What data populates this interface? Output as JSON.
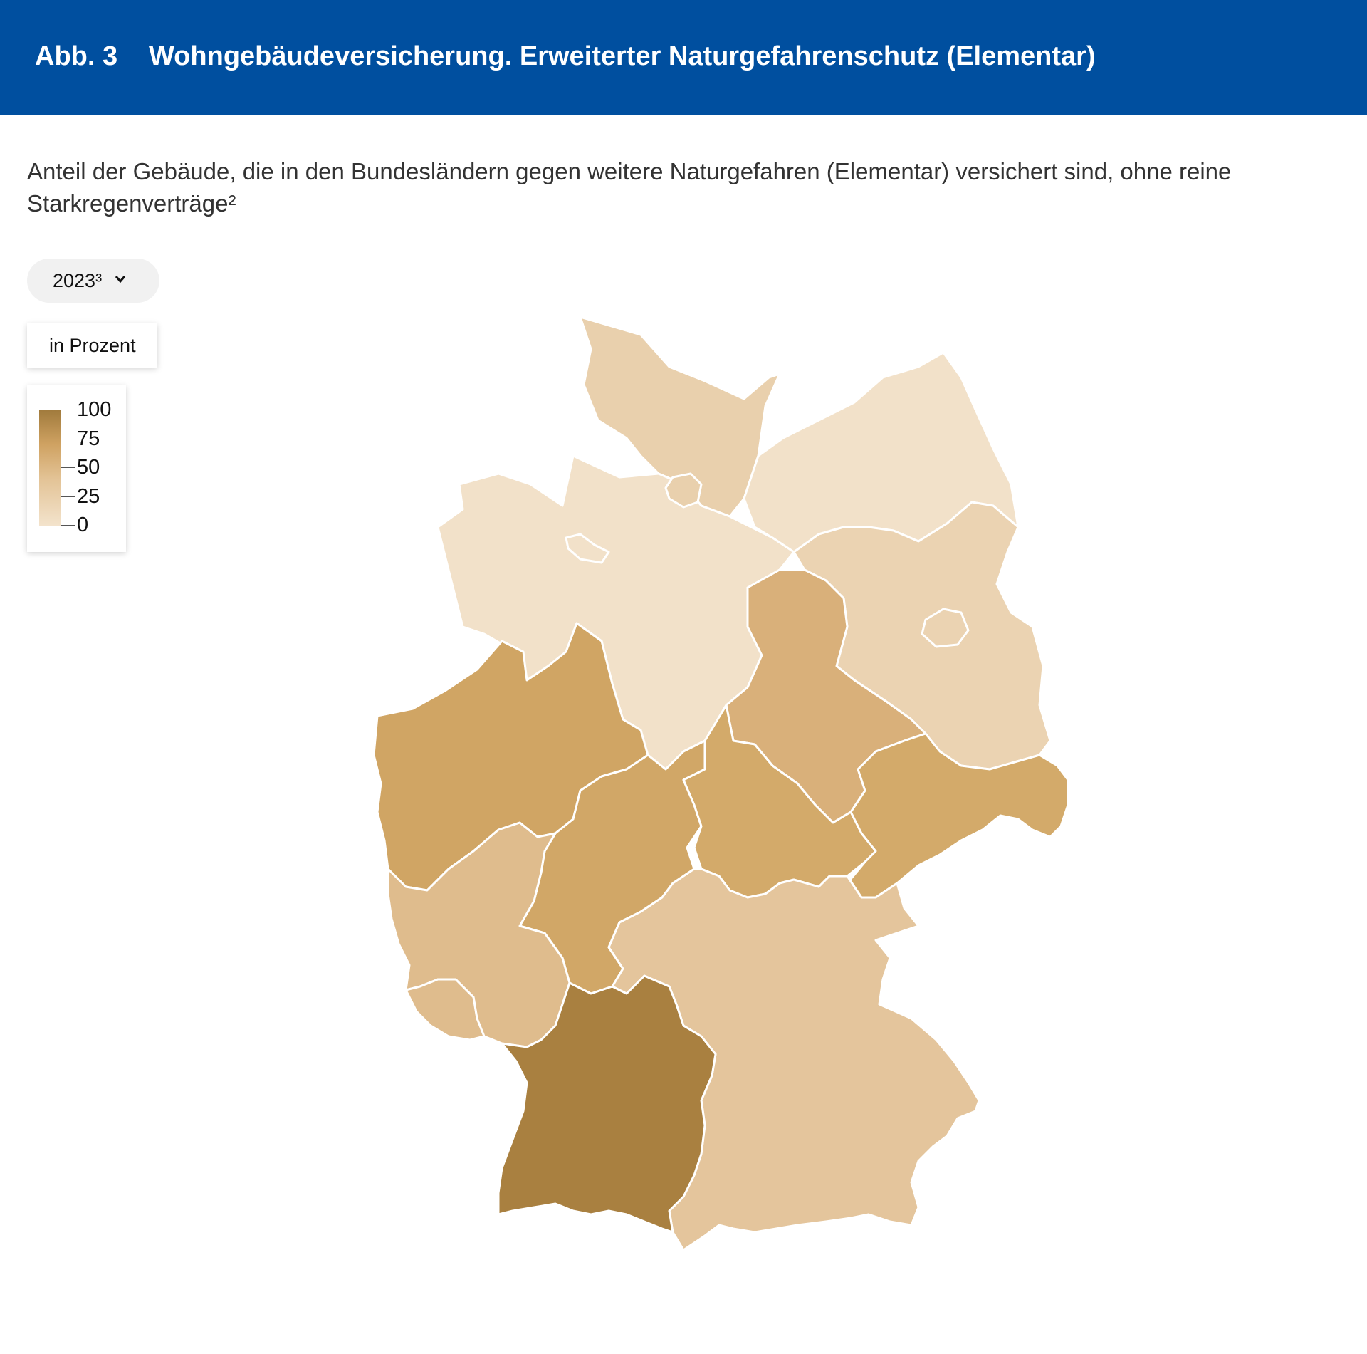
{
  "header": {
    "figure_number": "Abb. 3",
    "title": "Wohngebäudeversicherung. Erweiterter Naturgefahrenschutz (Elementar)"
  },
  "subtitle": "Anteil der Gebäude, die in den Bundesländern gegen weitere Naturgefahren (Elementar) versichert sind, ohne reine Starkregenverträge²",
  "year_select": {
    "value": "2023³"
  },
  "unit_label": "in Prozent",
  "legend": {
    "ticks": [
      "100",
      "75",
      "50",
      "25",
      "0"
    ],
    "colors": [
      "#a07a3c",
      "#f3e3cc"
    ]
  },
  "map": {
    "regions": [
      {
        "id": "schleswig-holstein",
        "color": "#e9d0ad"
      },
      {
        "id": "mecklenburg-vorpommern",
        "color": "#f2e1c9"
      },
      {
        "id": "hamburg",
        "color": "#e9d0ad"
      },
      {
        "id": "bremen",
        "color": "#f2e1c9"
      },
      {
        "id": "niedersachsen",
        "color": "#f2e1c9"
      },
      {
        "id": "brandenburg",
        "color": "#ebd3b2"
      },
      {
        "id": "berlin",
        "color": "#ebd3b2"
      },
      {
        "id": "sachsen-anhalt",
        "color": "#d9b07a"
      },
      {
        "id": "nordrhein-westfalen",
        "color": "#d0a564"
      },
      {
        "id": "hessen",
        "color": "#d1a767"
      },
      {
        "id": "thueringen",
        "color": "#d3aa6a"
      },
      {
        "id": "sachsen",
        "color": "#d3aa6a"
      },
      {
        "id": "rheinland-pfalz",
        "color": "#dfbc8d"
      },
      {
        "id": "saarland",
        "color": "#dfbc8d"
      },
      {
        "id": "bayern",
        "color": "#e4c59c"
      },
      {
        "id": "baden-wuerttemberg",
        "color": "#a98040"
      }
    ]
  }
}
